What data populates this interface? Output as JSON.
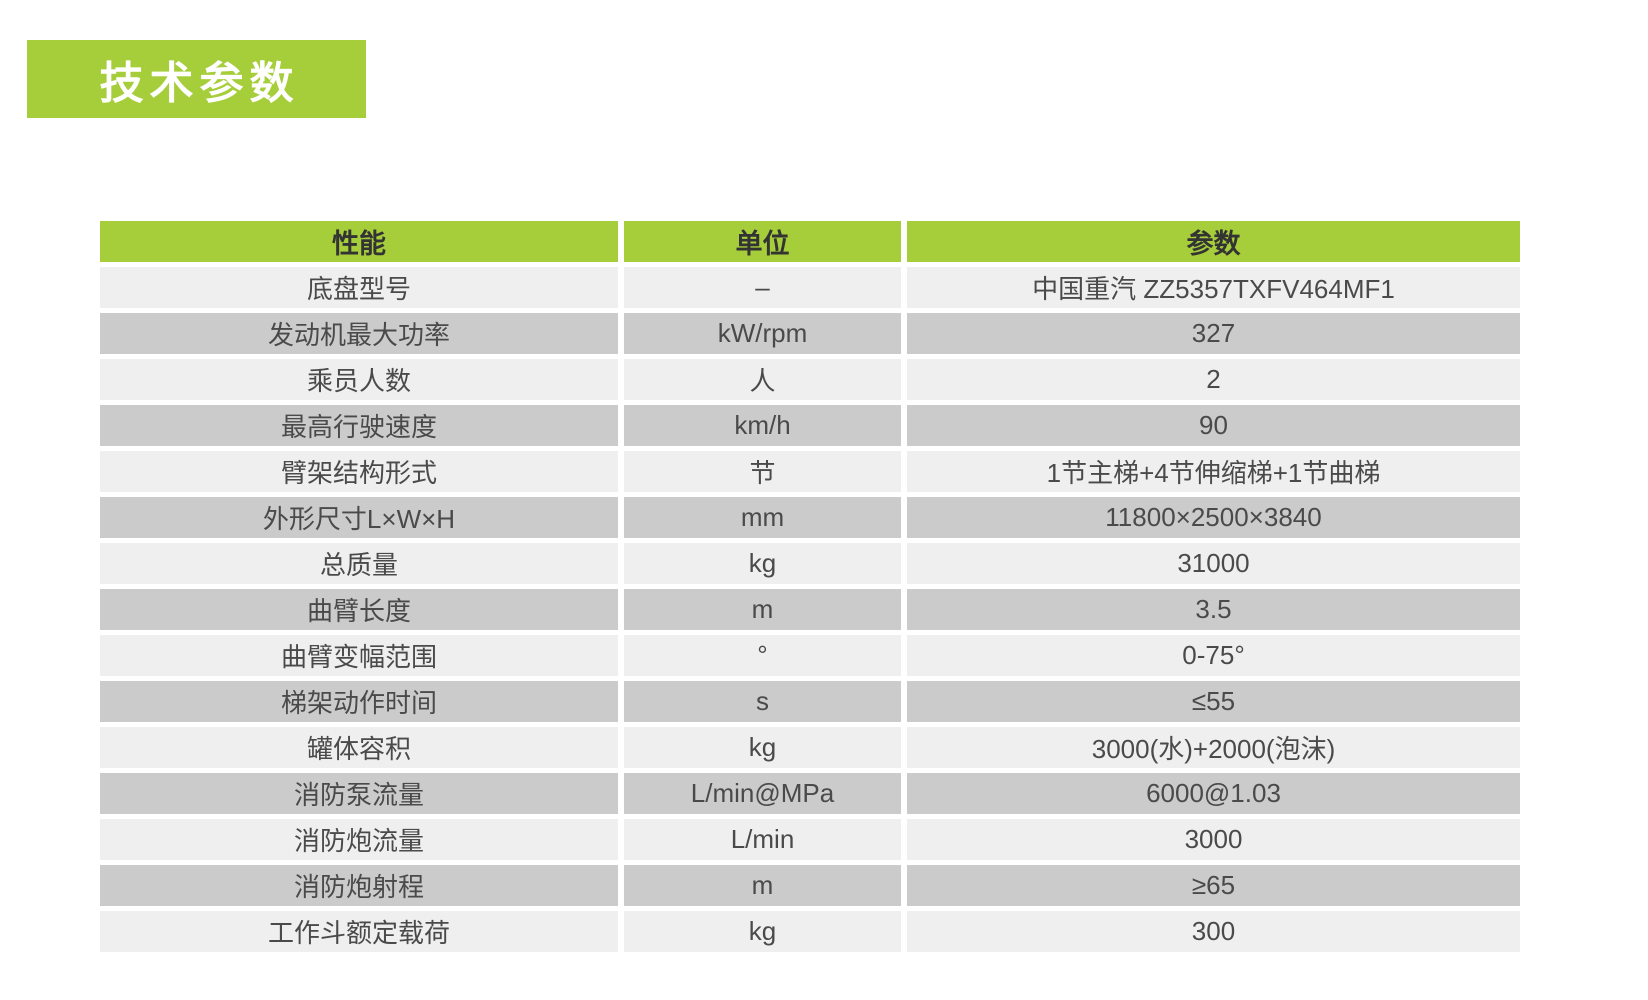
{
  "section": {
    "title": "技术参数"
  },
  "colors": {
    "accent_green": "#a6ce3b",
    "row_light": "#efefef",
    "row_dark": "#cbcbcb",
    "header_text": "#333333",
    "cell_text": "#4a4a4a",
    "title_text": "#ffffff",
    "background": "#ffffff"
  },
  "table": {
    "headers": [
      "性能",
      "单位",
      "参数"
    ],
    "rows": [
      [
        "底盘型号",
        "–",
        "中国重汽 ZZ5357TXFV464MF1"
      ],
      [
        "发动机最大功率",
        "kW/rpm",
        "327"
      ],
      [
        "乘员人数",
        "人",
        "2"
      ],
      [
        "最高行驶速度",
        "km/h",
        "90"
      ],
      [
        "臂架结构形式",
        "节",
        "1节主梯+4节伸缩梯+1节曲梯"
      ],
      [
        "外形尺寸L×W×H",
        "mm",
        "11800×2500×3840"
      ],
      [
        "总质量",
        "kg",
        "31000"
      ],
      [
        "曲臂长度",
        "m",
        "3.5"
      ],
      [
        "曲臂变幅范围",
        "°",
        "0-75°"
      ],
      [
        "梯架动作时间",
        "s",
        "≤55"
      ],
      [
        "罐体容积",
        "kg",
        "3000(水)+2000(泡沫)"
      ],
      [
        "消防泵流量",
        "L/min@MPa",
        "6000@1.03"
      ],
      [
        "消防炮流量",
        "L/min",
        "3000"
      ],
      [
        "消防炮射程",
        "m",
        "≥65"
      ],
      [
        "工作斗额定载荷",
        "kg",
        "300"
      ]
    ]
  }
}
